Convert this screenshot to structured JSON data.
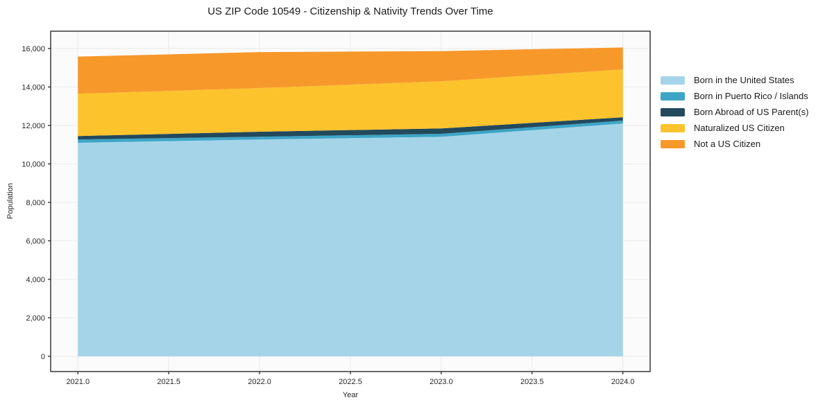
{
  "figure": {
    "title": "US ZIP Code 10549 - Citizenship & Nativity Trends Over Time"
  },
  "chart_data": {
    "type": "area",
    "stacked": true,
    "title": "US ZIP Code 10549 - Citizenship & Nativity Trends Over Time",
    "xlabel": "Year",
    "ylabel": "Population",
    "x": [
      2021,
      2022,
      2023,
      2024
    ],
    "series": [
      {
        "name": "Born in the United States",
        "color": "#a5d4e8",
        "values": [
          11100,
          11270,
          11410,
          12100
        ]
      },
      {
        "name": "Born in Puerto Rico / Islands",
        "color": "#3da6c6",
        "values": [
          170,
          145,
          155,
          155
        ]
      },
      {
        "name": "Born Abroad of US Parent(s)",
        "color": "#23495c",
        "values": [
          180,
          260,
          280,
          170
        ]
      },
      {
        "name": "Naturalized US Citizen",
        "color": "#fcc32d",
        "values": [
          2200,
          2270,
          2450,
          2490
        ]
      },
      {
        "name": "Not a US Citizen",
        "color": "#f7982b",
        "values": [
          1930,
          1870,
          1570,
          1140
        ]
      }
    ],
    "totals": [
      15580,
      15815,
      15865,
      16055
    ],
    "xlim": [
      2020.85,
      2024.15
    ],
    "ylim": [
      -795,
      16900
    ],
    "x_ticks": [
      2021.0,
      2021.5,
      2022.0,
      2022.5,
      2023.0,
      2023.5,
      2024.0
    ],
    "x_tick_labels": [
      "2021.0",
      "2021.5",
      "2022.0",
      "2022.5",
      "2023.0",
      "2023.5",
      "2024.0"
    ],
    "y_ticks": [
      0,
      2000,
      4000,
      6000,
      8000,
      10000,
      12000,
      14000,
      16000
    ],
    "y_tick_labels": [
      "0",
      "2,000",
      "4,000",
      "6,000",
      "8,000",
      "10,000",
      "12,000",
      "14,000",
      "16,000"
    ],
    "grid": true,
    "grid_color": "#e9e9e9",
    "plot_background": "#fbfbfb",
    "frame_color": "#1a1a1a",
    "tick_label_color": "#262626",
    "legend_position": "right"
  }
}
